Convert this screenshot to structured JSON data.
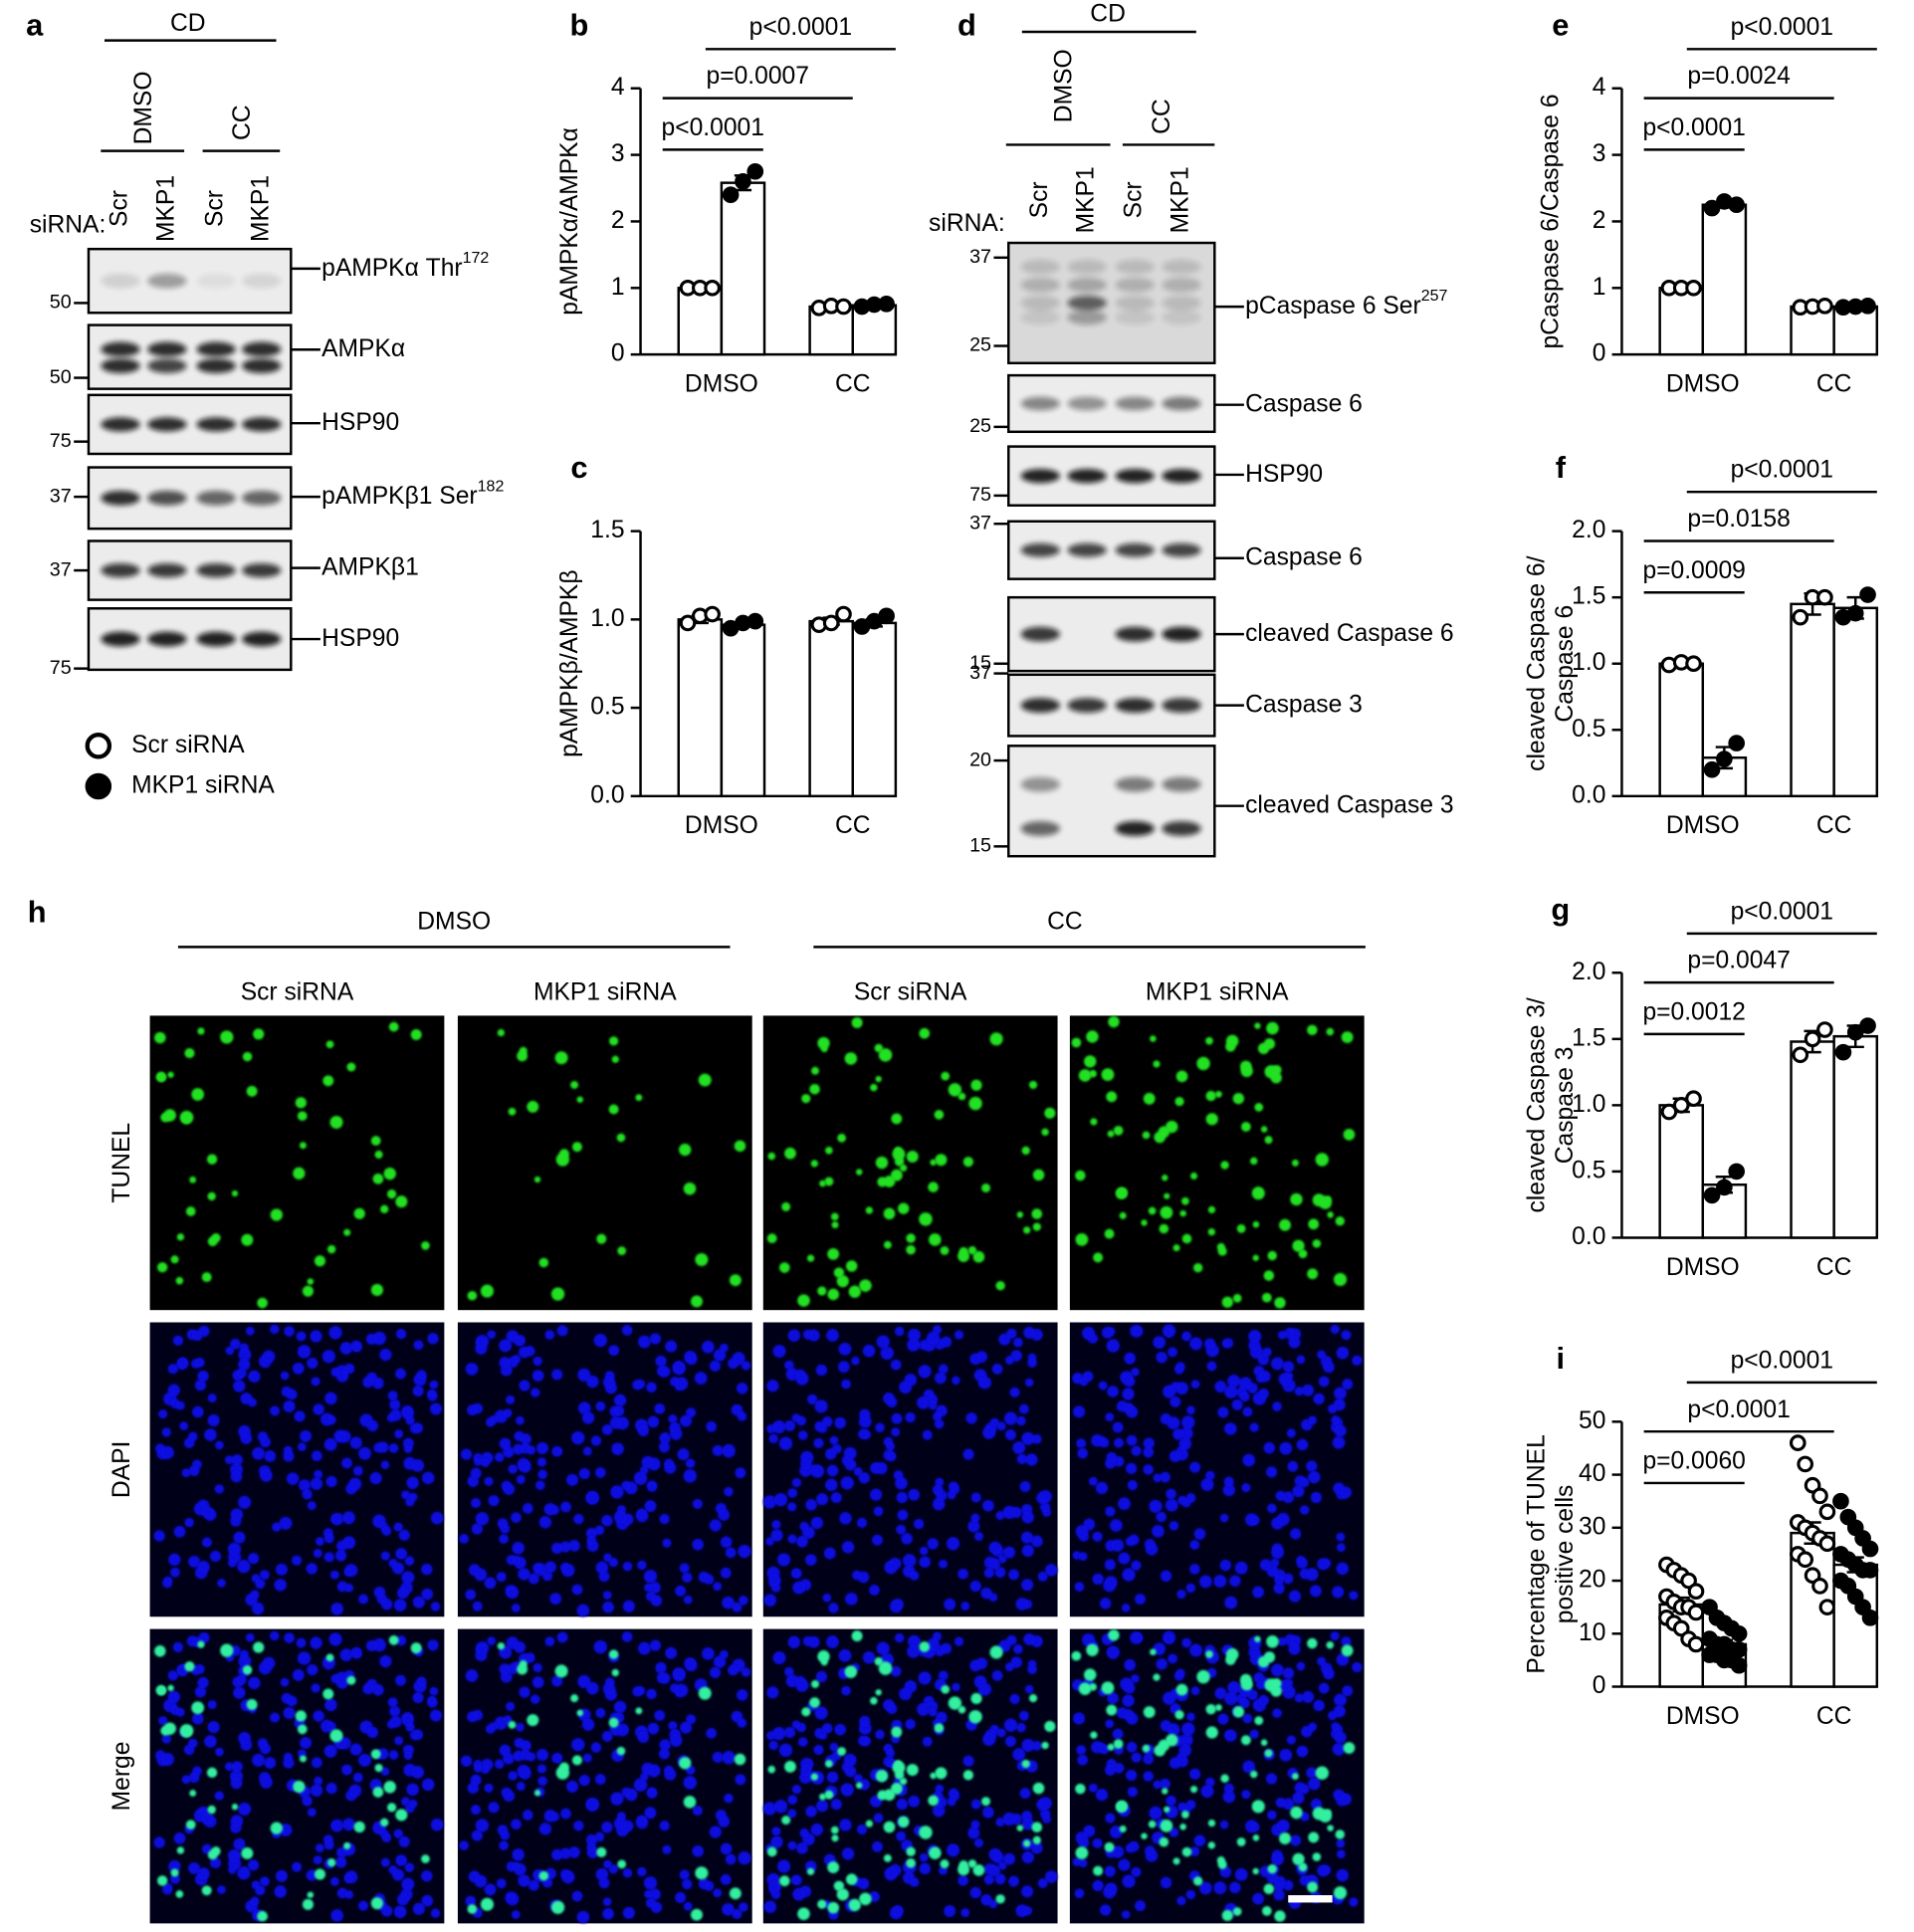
{
  "blots": [
    {
      "panel": "a",
      "header": "CD",
      "groups": [
        "DMSO",
        "CC"
      ],
      "siRNA_label": "siRNA:",
      "lanes": [
        "Scr",
        "MKP1",
        "Scr",
        "MKP1"
      ],
      "rows": [
        {
          "label": {
            "text": "pAMPKα Thr",
            "sup": "172"
          },
          "markers": [
            50
          ]
        },
        {
          "label": {
            "text": "AMPKα"
          },
          "markers": [
            50
          ]
        },
        {
          "label": {
            "text": "HSP90"
          },
          "markers": [
            75
          ]
        },
        {
          "label": {
            "text": "pAMPKβ1 Ser",
            "sup": "182"
          },
          "markers": [
            37
          ]
        },
        {
          "label": {
            "text": "AMPKβ1"
          },
          "markers": [
            37
          ]
        },
        {
          "label": {
            "text": "HSP90"
          },
          "markers": [
            75
          ]
        }
      ]
    },
    {
      "panel": "d",
      "header": "CD",
      "groups": [
        "DMSO",
        "CC"
      ],
      "siRNA_label": "siRNA:",
      "lanes": [
        "Scr",
        "MKP1",
        "Scr",
        "MKP1"
      ],
      "rows": [
        {
          "label": {
            "text": "pCaspase 6 Ser",
            "sup": "257"
          },
          "markers": [
            37,
            25
          ]
        },
        {
          "label": {
            "text": "Caspase 6"
          },
          "markers": [
            25
          ]
        },
        {
          "label": {
            "text": "HSP90"
          },
          "markers": [
            75
          ]
        },
        {
          "label": {
            "text": "Caspase 6"
          },
          "markers": [
            37
          ]
        },
        {
          "label": {
            "text": "cleaved Caspase 6"
          },
          "markers": [
            15
          ]
        },
        {
          "label": {
            "text": "Caspase 3"
          },
          "markers": [
            37
          ]
        },
        {
          "label": {
            "text": "cleaved Caspase 3"
          },
          "markers": [
            20,
            15
          ]
        }
      ]
    }
  ],
  "legend": {
    "items": [
      {
        "marker": "open",
        "label": "Scr siRNA"
      },
      {
        "marker": "filled",
        "label": "MKP1 siRNA"
      }
    ]
  },
  "images": {
    "panel": "h",
    "groups": [
      "DMSO",
      "CC"
    ],
    "columns": [
      "Scr siRNA",
      "MKP1 siRNA",
      "Scr siRNA",
      "MKP1 siRNA"
    ],
    "rows": [
      "TUNEL",
      "DAPI",
      "Merge"
    ]
  },
  "chart_data": [
    {
      "type": "bar",
      "panel": "b",
      "ylabel": [
        "pAMPKα/AMPKα"
      ],
      "categories": [
        "DMSO",
        "CC"
      ],
      "ylim": [
        0,
        4
      ],
      "yticks": [
        0,
        1,
        2,
        3,
        4
      ],
      "series": [
        {
          "marker": "open",
          "color": "#000000",
          "values": [
            1.0,
            0.72
          ],
          "errors": [
            0.0,
            0.01
          ],
          "points": [
            [
              1.0,
              1.0,
              1.0
            ],
            [
              0.7,
              0.73,
              0.72
            ]
          ]
        },
        {
          "marker": "filled",
          "color": "#000000",
          "values": [
            2.58,
            0.74
          ],
          "errors": [
            0.11,
            0.01
          ],
          "points": [
            [
              2.4,
              2.6,
              2.75
            ],
            [
              0.72,
              0.75,
              0.76
            ]
          ]
        }
      ],
      "annotations": [
        "p<0.0001",
        "p=0.0007",
        "p<0.0001"
      ]
    },
    {
      "type": "bar",
      "panel": "c",
      "ylabel": [
        "pAMPKβ/AMPKβ"
      ],
      "categories": [
        "DMSO",
        "CC"
      ],
      "ylim": [
        0,
        1.5
      ],
      "yticks": [
        {
          "value": 0,
          "label": "0.0"
        },
        0.5,
        {
          "value": 1,
          "label": "1.0"
        },
        1.5
      ],
      "series": [
        {
          "marker": "open",
          "color": "#000000",
          "values": [
            1.0,
            0.99
          ],
          "errors": [
            0.02,
            0.02
          ],
          "points": [
            [
              0.98,
              1.02,
              1.03
            ],
            [
              0.97,
              0.98,
              1.03
            ]
          ]
        },
        {
          "marker": "filled",
          "color": "#000000",
          "values": [
            0.97,
            0.98
          ],
          "errors": [
            0.01,
            0.02
          ],
          "points": [
            [
              0.95,
              0.98,
              0.99
            ],
            [
              0.96,
              0.99,
              1.02
            ]
          ]
        }
      ],
      "annotations": []
    },
    {
      "type": "bar",
      "panel": "e",
      "ylabel": [
        "pCaspase 6/Caspase 6"
      ],
      "categories": [
        "DMSO",
        "CC"
      ],
      "ylim": [
        0,
        4
      ],
      "yticks": [
        0,
        1,
        2,
        3,
        4
      ],
      "series": [
        {
          "marker": "open",
          "color": "#000000",
          "values": [
            1.0,
            0.72
          ],
          "errors": [
            0.0,
            0.01
          ],
          "points": [
            [
              1.0,
              1.0,
              1.0
            ],
            [
              0.71,
              0.72,
              0.73
            ]
          ]
        },
        {
          "marker": "filled",
          "color": "#000000",
          "values": [
            2.25,
            0.72
          ],
          "errors": [
            0.04,
            0.01
          ],
          "points": [
            [
              2.2,
              2.3,
              2.25
            ],
            [
              0.71,
              0.72,
              0.73
            ]
          ]
        }
      ],
      "annotations": [
        "p<0.0001",
        "p=0.0024",
        "p<0.0001"
      ]
    },
    {
      "type": "bar",
      "panel": "f",
      "ylabel": [
        "cleaved Caspase 6/",
        "Caspase 6"
      ],
      "categories": [
        "DMSO",
        "CC"
      ],
      "ylim": [
        0,
        2
      ],
      "yticks": [
        {
          "value": 0,
          "label": "0.0"
        },
        0.5,
        {
          "value": 1,
          "label": "1.0"
        },
        1.5,
        {
          "value": 2,
          "label": "2.0"
        }
      ],
      "series": [
        {
          "marker": "open",
          "color": "#000000",
          "values": [
            1.0,
            1.45
          ],
          "errors": [
            0.01,
            0.08
          ],
          "points": [
            [
              0.99,
              1.01,
              1.0
            ],
            [
              1.35,
              1.5,
              1.5
            ]
          ]
        },
        {
          "marker": "filled",
          "color": "#000000",
          "values": [
            0.29,
            1.42
          ],
          "errors": [
            0.08,
            0.08
          ],
          "points": [
            [
              0.2,
              0.28,
              0.4
            ],
            [
              1.35,
              1.38,
              1.52
            ]
          ]
        }
      ],
      "annotations": [
        "p=0.0009",
        "p=0.0158",
        "p<0.0001"
      ]
    },
    {
      "type": "bar",
      "panel": "g",
      "ylabel": [
        "cleaved Caspase 3/",
        "Caspase 3"
      ],
      "categories": [
        "DMSO",
        "CC"
      ],
      "ylim": [
        0,
        2
      ],
      "yticks": [
        {
          "value": 0,
          "label": "0.0"
        },
        0.5,
        {
          "value": 1,
          "label": "1.0"
        },
        1.5,
        {
          "value": 2,
          "label": "2.0"
        }
      ],
      "series": [
        {
          "marker": "open",
          "color": "#000000",
          "values": [
            1.0,
            1.48
          ],
          "errors": [
            0.05,
            0.08
          ],
          "points": [
            [
              0.95,
              1.0,
              1.05
            ],
            [
              1.38,
              1.5,
              1.57
            ]
          ]
        },
        {
          "marker": "filled",
          "color": "#000000",
          "values": [
            0.4,
            1.52
          ],
          "errors": [
            0.06,
            0.08
          ],
          "points": [
            [
              0.32,
              0.38,
              0.5
            ],
            [
              1.4,
              1.55,
              1.6
            ]
          ]
        }
      ],
      "annotations": [
        "p=0.0012",
        "p=0.0047",
        "p<0.0001"
      ]
    },
    {
      "type": "bar",
      "panel": "i",
      "ylabel": [
        "Percentage of TUNEL",
        "positive cells"
      ],
      "categories": [
        "DMSO",
        "CC"
      ],
      "ylim": [
        0,
        50
      ],
      "yticks": [
        0,
        10,
        20,
        30,
        40,
        50
      ],
      "series": [
        {
          "marker": "open",
          "color": "#000000",
          "values": [
            15.5,
            29
          ],
          "errors": [
            1.3,
            2.0
          ],
          "points": [
            [
              23,
              22,
              21,
              20,
              18,
              17,
              16,
              15,
              15,
              14,
              13,
              12,
              11,
              9,
              8
            ],
            [
              46,
              42,
              38,
              36,
              33,
              31,
              30,
              29,
              28,
              27,
              25,
              24,
              21,
              19,
              15
            ]
          ]
        },
        {
          "marker": "filled",
          "color": "#000000",
          "values": [
            8,
            23
          ],
          "errors": [
            0.8,
            1.4
          ],
          "points": [
            [
              15,
              13,
              12,
              11,
              10,
              9,
              8,
              8,
              7,
              7,
              6,
              6,
              5,
              5,
              4
            ],
            [
              35,
              32,
              30,
              28,
              26,
              25,
              24,
              23,
              22,
              22,
              20,
              19,
              17,
              15,
              13
            ]
          ]
        }
      ],
      "annotations": [
        "p=0.0060",
        "p<0.0001",
        "p<0.0001"
      ]
    }
  ]
}
